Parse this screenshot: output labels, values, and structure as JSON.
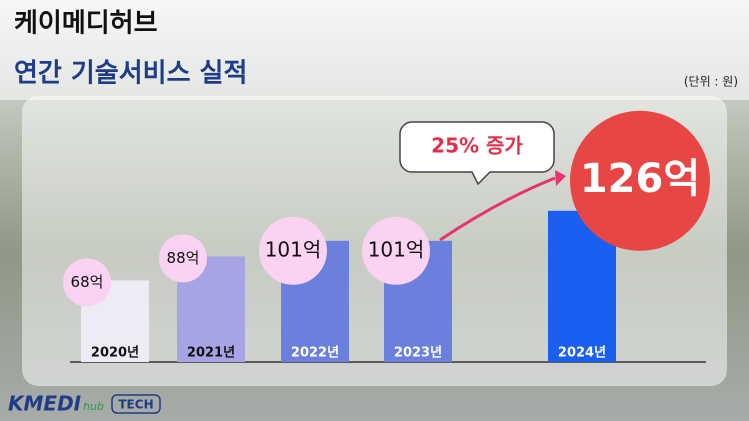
{
  "chart_data": {
    "type": "bar",
    "title": "케이메디허브",
    "subtitle": "연간 기술서비스 실적",
    "unit_note": "(단위 : 원)",
    "annotation": "25% 증가",
    "categories": [
      "2020년",
      "2021년",
      "2022년",
      "2023년",
      "2024년"
    ],
    "values": [
      68,
      88,
      101,
      101,
      126
    ],
    "value_labels": [
      "68억",
      "88억",
      "101억",
      "101억",
      "126억"
    ],
    "colors": [
      "#ecebf6",
      "#a7a4e6",
      "#6b80dc",
      "#6b80dc",
      "#1b5ff0"
    ],
    "logo": "KMEDI",
    "logo_sub": "hub",
    "logo_tag": "TECH"
  }
}
